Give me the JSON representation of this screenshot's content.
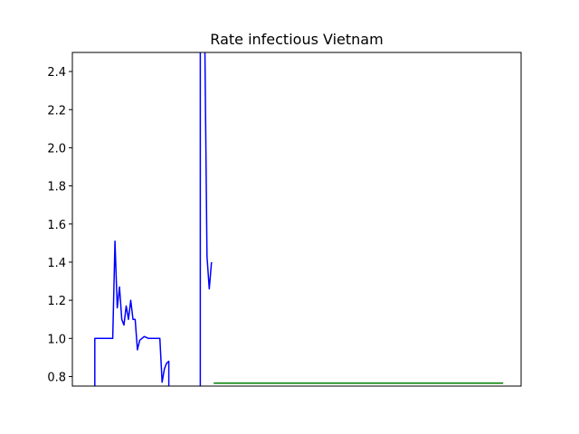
{
  "chart_data": {
    "type": "line",
    "title": "Rate infectious Vietnam",
    "xlabel": "",
    "ylabel": "",
    "ylim": [
      0.75,
      2.5
    ],
    "xlim": [
      0,
      200
    ],
    "grid": false,
    "x_ticks_visible": false,
    "yticks": [
      {
        "value": 0.8,
        "label": "0.8"
      },
      {
        "value": 1.0,
        "label": "1.0"
      },
      {
        "value": 1.2,
        "label": "1.2"
      },
      {
        "value": 1.4,
        "label": "1.4"
      },
      {
        "value": 1.6,
        "label": "1.6"
      },
      {
        "value": 1.8,
        "label": "1.8"
      },
      {
        "value": 2.0,
        "label": "2.0"
      },
      {
        "value": 2.2,
        "label": "2.2"
      },
      {
        "value": 2.4,
        "label": "2.4"
      }
    ],
    "series": [
      {
        "color": "#0000ff",
        "segments": [
          [
            [
              10,
              0.73
            ],
            [
              10,
              1.0
            ],
            [
              18,
              1.0
            ],
            [
              18,
              1.0
            ],
            [
              19,
              1.51
            ],
            [
              20,
              1.16
            ],
            [
              21,
              1.27
            ],
            [
              22,
              1.1
            ],
            [
              23,
              1.07
            ],
            [
              24,
              1.17
            ],
            [
              25,
              1.1
            ],
            [
              26,
              1.2
            ],
            [
              27,
              1.1
            ],
            [
              28,
              1.1
            ],
            [
              29,
              0.94
            ],
            [
              30,
              0.99
            ],
            [
              31,
              1.0
            ],
            [
              32,
              1.01
            ],
            [
              34,
              1.0
            ],
            [
              36,
              1.0
            ],
            [
              38,
              1.0
            ],
            [
              39,
              1.0
            ],
            [
              40,
              0.77
            ],
            [
              41,
              0.84
            ],
            [
              42,
              0.87
            ],
            [
              43,
              0.88
            ],
            [
              43,
              0.74
            ]
          ],
          [
            [
              57,
              0.74
            ],
            [
              57,
              2.6
            ],
            [
              59,
              2.6
            ],
            [
              60,
              1.43
            ],
            [
              61,
              1.26
            ],
            [
              62,
              1.4
            ]
          ]
        ]
      },
      {
        "color": "#008000",
        "segments": [
          [
            [
              63,
              0.765
            ],
            [
              192,
              0.765
            ]
          ]
        ]
      }
    ]
  }
}
